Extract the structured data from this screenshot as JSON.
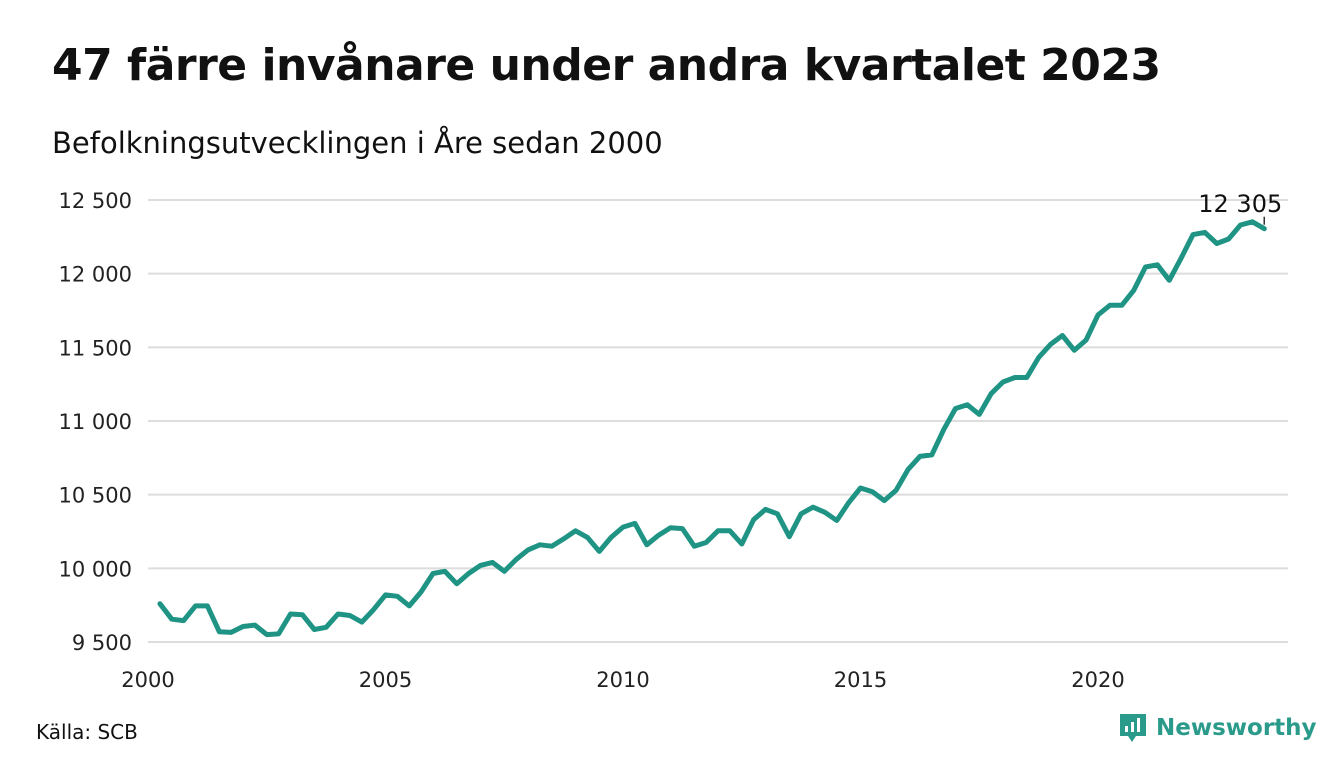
{
  "header": {
    "title": "47 färre invånare under andra kvartalet 2023",
    "subtitle": "Befolkningsutvecklingen i Åre sedan 2000"
  },
  "footer": {
    "source": "Källa: SCB",
    "brand": "Newsworthy",
    "brand_icon": "newsworthy-logo-icon"
  },
  "colors": {
    "line": "#1f9484",
    "grid": "#dddddd",
    "brand": "#2a9b8b"
  },
  "chart_data": {
    "type": "line",
    "title": "47 färre invånare under andra kvartalet 2023",
    "subtitle": "Befolkningsutvecklingen i Åre sedan 2000",
    "xlabel": "",
    "ylabel": "",
    "xlim": [
      2000,
      2024
    ],
    "ylim": [
      9450,
      12550
    ],
    "x_ticks": [
      2000,
      2005,
      2010,
      2015,
      2020
    ],
    "x_tick_labels": [
      "2000",
      "2005",
      "2010",
      "2015",
      "2020"
    ],
    "y_ticks": [
      9500,
      10000,
      10500,
      11000,
      11500,
      12000,
      12500
    ],
    "y_tick_labels": [
      "9 500",
      "10 000",
      "10 500",
      "11 000",
      "11 500",
      "12 000",
      "12 500"
    ],
    "grid": true,
    "end_label": "12 305",
    "series": [
      {
        "x": [
          2000.25,
          2000.5,
          2000.75,
          2001.0,
          2001.25,
          2001.5,
          2001.75,
          2002.0,
          2002.25,
          2002.5,
          2002.75,
          2003.0,
          2003.25,
          2003.5,
          2003.75,
          2004.0,
          2004.25,
          2004.5,
          2004.75,
          2005.0,
          2005.25,
          2005.5,
          2005.75,
          2006.0,
          2006.25,
          2006.5,
          2006.75,
          2007.0,
          2007.25,
          2007.5,
          2007.75,
          2008.0,
          2008.25,
          2008.5,
          2008.75,
          2009.0,
          2009.25,
          2009.5,
          2009.75,
          2010.0,
          2010.25,
          2010.5,
          2010.75,
          2011.0,
          2011.25,
          2011.5,
          2011.75,
          2012.0,
          2012.25,
          2012.5,
          2012.75,
          2013.0,
          2013.25,
          2013.5,
          2013.75,
          2014.0,
          2014.25,
          2014.5,
          2014.75,
          2015.0,
          2015.25,
          2015.5,
          2015.75,
          2016.0,
          2016.25,
          2016.5,
          2016.75,
          2017.0,
          2017.25,
          2017.5,
          2017.75,
          2018.0,
          2018.25,
          2018.5,
          2018.75,
          2019.0,
          2019.25,
          2019.5,
          2019.75,
          2020.0,
          2020.25,
          2020.5,
          2020.75,
          2021.0,
          2021.25,
          2021.5,
          2021.75,
          2022.0,
          2022.25,
          2022.5,
          2022.75,
          2023.0,
          2023.25,
          2023.5
        ],
        "values": [
          9760,
          9655,
          9645,
          9745,
          9745,
          9570,
          9565,
          9605,
          9615,
          9550,
          9555,
          9690,
          9685,
          9585,
          9600,
          9690,
          9680,
          9635,
          9720,
          9820,
          9810,
          9745,
          9840,
          9965,
          9980,
          9895,
          9965,
          10020,
          10040,
          9980,
          10060,
          10125,
          10160,
          10150,
          10200,
          10255,
          10210,
          10115,
          10210,
          10280,
          10305,
          10160,
          10225,
          10275,
          10270,
          10150,
          10175,
          10255,
          10255,
          10165,
          10330,
          10400,
          10370,
          10215,
          10370,
          10415,
          10380,
          10325,
          10445,
          10545,
          10520,
          10460,
          10530,
          10670,
          10760,
          10770,
          10940,
          11085,
          11110,
          11045,
          11185,
          11265,
          11295,
          11295,
          11430,
          11520,
          11580,
          11480,
          11550,
          11720,
          11785,
          11785,
          11885,
          12045,
          12060,
          11955,
          12105,
          12265,
          12280,
          12205,
          12235,
          12330,
          12352,
          12305
        ]
      }
    ]
  }
}
